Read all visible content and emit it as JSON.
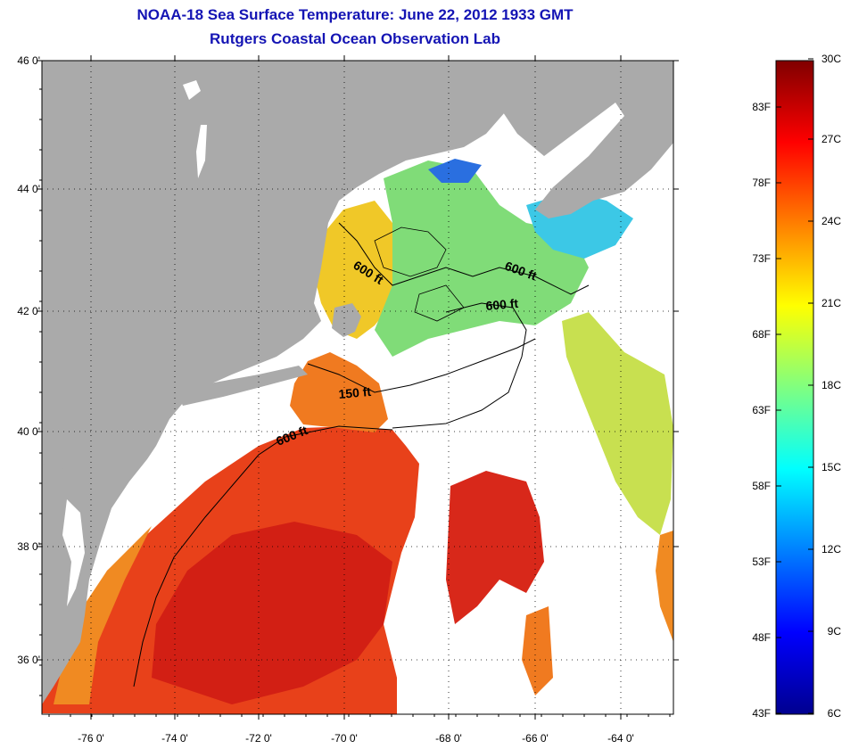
{
  "header": {
    "title": "NOAA-18 Sea Surface Temperature:  June 22, 2012 1933 GMT",
    "subtitle": "Rutgers Coastal Ocean Observation Lab"
  },
  "map": {
    "lon_ticks": [
      "-76 0'",
      "-74 0'",
      "-72 0'",
      "-70 0'",
      "-68 0'",
      "-66 0'",
      "-64 0'"
    ],
    "lat_ticks": [
      "46 0'",
      "44 0'",
      "42 0'",
      "40 0'",
      "38 0'",
      "36 0'"
    ],
    "contour_labels": [
      "600 ft",
      "600 ft",
      "600 ft",
      "150 ft",
      "600 ft"
    ],
    "colors": {
      "land": "#aaaaaa",
      "cloud": "#ffffff"
    }
  },
  "colorbar": {
    "f_labels": [
      "83F",
      "78F",
      "73F",
      "68F",
      "63F",
      "58F",
      "53F",
      "48F",
      "43F"
    ],
    "c_labels": [
      "30C",
      "27C",
      "24C",
      "21C",
      "18C",
      "15C",
      "12C",
      "9C",
      "6C"
    ],
    "range_c": [
      6,
      30
    ]
  }
}
